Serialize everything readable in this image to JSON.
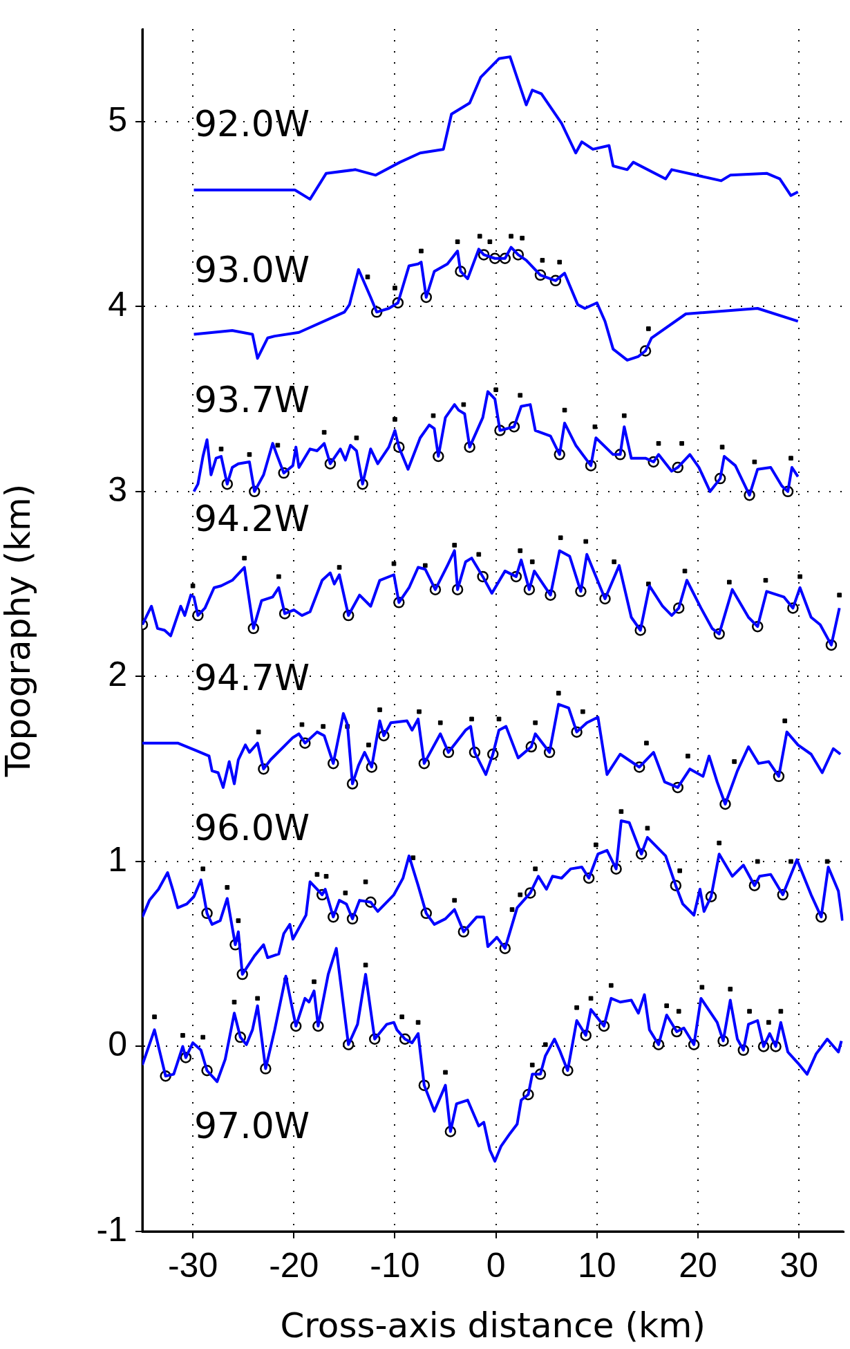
{
  "chart_data": {
    "type": "line",
    "xlabel": "Cross-axis distance (km)",
    "ylabel": "Topography (km)",
    "xlim": [
      -35,
      34.4
    ],
    "ylim": [
      -1,
      5.5
    ],
    "xticks": [
      -30,
      -20,
      -10,
      0,
      10,
      20,
      30
    ],
    "yticks": [
      -1,
      0,
      1,
      2,
      3,
      4,
      5
    ],
    "grid": true,
    "legend": false,
    "annotations": [
      "92.0W",
      "93.0W",
      "93.7W",
      "94.2W",
      "94.7W",
      "96.0W",
      "97.0W"
    ],
    "series": [
      {
        "color": "#0000ff",
        "x": [
          -29.9,
          -19.9,
          -18.4,
          -16.8,
          -13.9,
          -11.9,
          -9.5,
          -7.5,
          -5.2,
          -4.4,
          -2.6,
          -1.5,
          0.3,
          1.4,
          3.0,
          3.6,
          4.5,
          6.5,
          7.9,
          8.5,
          9.6,
          11.2,
          11.6,
          13.0,
          13.6,
          16.8,
          17.4,
          22.3,
          23.2,
          26.8,
          28.1,
          29.2,
          29.9
        ],
        "values": [
          4.63,
          4.63,
          4.58,
          4.72,
          4.74,
          4.71,
          4.78,
          4.83,
          4.85,
          5.04,
          5.1,
          5.24,
          5.34,
          5.35,
          5.09,
          5.17,
          5.15,
          4.99,
          4.83,
          4.89,
          4.85,
          4.87,
          4.76,
          4.74,
          4.78,
          4.69,
          4.74,
          4.68,
          4.71,
          4.72,
          4.69,
          4.6,
          4.62
        ]
      },
      {
        "color": "#0000ff",
        "x": [
          -29.9,
          -26.1,
          -24.1,
          -23.6,
          -22.6,
          -21.9,
          -19.5,
          -15,
          -14.5,
          -13.6,
          -12.4,
          -11.8,
          -10.6,
          -9.7,
          -8.6,
          -7.7,
          -7.4,
          -6.9,
          -6.1,
          -4.8,
          -3.8,
          -3.5,
          -2.8,
          -1.7,
          -1.2,
          -0.1,
          0.9,
          1.5,
          2.2,
          3.0,
          4.4,
          5.9,
          6.8,
          8.1,
          8.8,
          10.0,
          10.8,
          11.6,
          13.0,
          14.1,
          14.8,
          15.4,
          18.8,
          25.9,
          29.9
        ],
        "values": [
          3.85,
          3.87,
          3.85,
          3.72,
          3.83,
          3.84,
          3.86,
          3.97,
          4.01,
          4.2,
          4.05,
          3.97,
          3.99,
          4.02,
          4.22,
          4.23,
          4.24,
          4.05,
          4.19,
          4.23,
          4.3,
          4.19,
          4.15,
          4.31,
          4.28,
          4.26,
          4.26,
          4.32,
          4.28,
          4.25,
          4.17,
          4.14,
          4.18,
          4.01,
          3.99,
          4.02,
          3.92,
          3.77,
          3.71,
          3.73,
          3.76,
          3.83,
          3.96,
          3.99,
          3.92
        ]
      },
      {
        "color": "#0000ff",
        "x": [
          -29.9,
          -29.5,
          -29,
          -28.6,
          -28.2,
          -27.7,
          -27.2,
          -26.6,
          -26.1,
          -25.5,
          -24.4,
          -23.9,
          -23,
          -22.1,
          -21.7,
          -21,
          -20.1,
          -19.8,
          -19.5,
          -18.4,
          -17.7,
          -17,
          -16.4,
          -15.4,
          -14.9,
          -14.4,
          -13.8,
          -13.2,
          -12.4,
          -11.7,
          -10.6,
          -10,
          -9.6,
          -8.7,
          -7.5,
          -6.6,
          -6.1,
          -5.7,
          -5,
          -4.1,
          -3.7,
          -3.1,
          -2.6,
          -1.3,
          -0.8,
          -0.1,
          0.4,
          1.8,
          2.5,
          3.4,
          3.9,
          5.4,
          6.3,
          6.8,
          7.9,
          9.4,
          9.9,
          11.6,
          12.3,
          12.7,
          13.4,
          14.8,
          15.6,
          16.1,
          17.4,
          18.0,
          19.2,
          20.1,
          21.2,
          22.2,
          22.6,
          23.7,
          25.1,
          25.9,
          27.2,
          28.3,
          28.9,
          29.3,
          29.9
        ],
        "values": [
          3.0,
          3.04,
          3.19,
          3.28,
          3.09,
          3.18,
          3.19,
          3.04,
          3.13,
          3.15,
          3.16,
          3.0,
          3.09,
          3.26,
          3.2,
          3.1,
          3.14,
          3.24,
          3.13,
          3.23,
          3.22,
          3.26,
          3.15,
          3.23,
          3.17,
          3.25,
          3.22,
          3.04,
          3.23,
          3.15,
          3.24,
          3.33,
          3.24,
          3.12,
          3.29,
          3.36,
          3.34,
          3.19,
          3.4,
          3.47,
          3.44,
          3.42,
          3.24,
          3.4,
          3.54,
          3.5,
          3.33,
          3.35,
          3.46,
          3.47,
          3.33,
          3.3,
          3.2,
          3.37,
          3.25,
          3.14,
          3.29,
          3.2,
          3.2,
          3.35,
          3.18,
          3.18,
          3.16,
          3.2,
          3.11,
          3.13,
          3.2,
          3.13,
          3.0,
          3.07,
          3.19,
          3.14,
          2.98,
          3.12,
          3.13,
          3.03,
          3.0,
          3.13,
          3.08
        ]
      },
      {
        "color": "#0000ff",
        "x": [
          -35,
          -34.1,
          -33.5,
          -32.8,
          -32.2,
          -31.2,
          -30.8,
          -30.2,
          -29.9,
          -29.5,
          -28.8,
          -27.9,
          -27.2,
          -26.1,
          -24.9,
          -24,
          -23.2,
          -22.1,
          -21.5,
          -20.9,
          -20,
          -19.2,
          -18.4,
          -17.2,
          -16.4,
          -16,
          -15.5,
          -14.6,
          -13.5,
          -12.4,
          -11.5,
          -10.1,
          -9.6,
          -8.6,
          -7.7,
          -7,
          -6,
          -4.8,
          -4.1,
          -3.8,
          -3,
          -2.4,
          -1.3,
          -0.4,
          0.9,
          2.0,
          2.5,
          3.3,
          3.8,
          5.4,
          6.3,
          7.3,
          8.4,
          9.0,
          10.8,
          12.2,
          13.4,
          14.3,
          15.2,
          16.5,
          17.4,
          18.1,
          18.9,
          20.3,
          21.4,
          22.1,
          23.4,
          25.0,
          25.9,
          26.8,
          28.5,
          29.4,
          30.1,
          31.2,
          32.1,
          33.2,
          34.0
        ],
        "values": [
          2.28,
          2.38,
          2.26,
          2.25,
          2.22,
          2.38,
          2.33,
          2.44,
          2.43,
          2.33,
          2.37,
          2.48,
          2.49,
          2.52,
          2.59,
          2.26,
          2.41,
          2.43,
          2.48,
          2.34,
          2.36,
          2.33,
          2.35,
          2.52,
          2.56,
          2.5,
          2.55,
          2.33,
          2.44,
          2.38,
          2.52,
          2.55,
          2.4,
          2.48,
          2.59,
          2.58,
          2.47,
          2.6,
          2.68,
          2.47,
          2.62,
          2.64,
          2.54,
          2.45,
          2.57,
          2.54,
          2.63,
          2.47,
          2.57,
          2.44,
          2.68,
          2.65,
          2.46,
          2.66,
          2.42,
          2.6,
          2.32,
          2.25,
          2.49,
          2.38,
          2.33,
          2.37,
          2.52,
          2.37,
          2.26,
          2.23,
          2.47,
          2.32,
          2.27,
          2.46,
          2.43,
          2.37,
          2.48,
          2.32,
          2.28,
          2.17,
          2.37
        ]
      },
      {
        "color": "#0000ff",
        "x": [
          -35,
          -31.5,
          -29.7,
          -28.4,
          -28.1,
          -27.5,
          -27,
          -26.4,
          -25.9,
          -25.5,
          -24.8,
          -24.4,
          -23.6,
          -23,
          -22.3,
          -20.1,
          -19.5,
          -18.9,
          -17.7,
          -17,
          -16.1,
          -15.1,
          -14.7,
          -14.2,
          -13.6,
          -13,
          -12.3,
          -11.5,
          -11.1,
          -10.4,
          -8.8,
          -8.3,
          -7.7,
          -7.1,
          -5.5,
          -4.7,
          -3,
          -2.5,
          -2.1,
          -1,
          -0.3,
          0.3,
          1.0,
          2.2,
          3.5,
          3.9,
          5.3,
          6.2,
          7.2,
          8.0,
          9.0,
          10.1,
          11.0,
          12.3,
          14.2,
          15.6,
          16.7,
          18.0,
          19.2,
          20.5,
          21.1,
          21.9,
          22.7,
          23.9,
          25.0,
          26.0,
          27.0,
          28.0,
          28.8,
          29.9,
          31.2,
          32.3,
          33.4,
          34.1
        ],
        "values": [
          1.64,
          1.64,
          1.6,
          1.57,
          1.49,
          1.48,
          1.4,
          1.54,
          1.42,
          1.55,
          1.63,
          1.59,
          1.64,
          1.5,
          1.55,
          1.67,
          1.69,
          1.64,
          1.7,
          1.68,
          1.53,
          1.8,
          1.74,
          1.42,
          1.52,
          1.59,
          1.51,
          1.76,
          1.68,
          1.75,
          1.76,
          1.71,
          1.77,
          1.53,
          1.69,
          1.59,
          1.71,
          1.73,
          1.59,
          1.47,
          1.58,
          1.71,
          1.73,
          1.56,
          1.62,
          1.69,
          1.59,
          1.85,
          1.83,
          1.7,
          1.75,
          1.78,
          1.47,
          1.58,
          1.51,
          1.59,
          1.43,
          1.4,
          1.5,
          1.46,
          1.57,
          1.43,
          1.31,
          1.49,
          1.62,
          1.53,
          1.54,
          1.46,
          1.7,
          1.63,
          1.58,
          1.48,
          1.61,
          1.58
        ]
      },
      {
        "color": "#0000ff",
        "x": [
          -35,
          -34.3,
          -33.4,
          -32.5,
          -32,
          -31.5,
          -30.6,
          -29.9,
          -29.2,
          -28.6,
          -28.1,
          -27.3,
          -26.6,
          -25.8,
          -25.5,
          -25.1,
          -23.9,
          -23,
          -22.6,
          -21.5,
          -21,
          -20.4,
          -20.1,
          -18.8,
          -18.4,
          -17.7,
          -17.2,
          -16.9,
          -16.1,
          -15.5,
          -14.8,
          -14.2,
          -13.5,
          -12.4,
          -11.7,
          -10.1,
          -9.2,
          -8.6,
          -7.7,
          -6.9,
          -6.1,
          -5,
          -4.1,
          -3.2,
          -1.9,
          -1.2,
          -0.8,
          0.1,
          0.9,
          2.1,
          3.4,
          4.2,
          5.0,
          5.6,
          6.5,
          7.4,
          8.5,
          9.2,
          10.1,
          11.0,
          11.9,
          12.4,
          13.2,
          13.9,
          14.4,
          15.0,
          16.8,
          17.8,
          18.5,
          19.6,
          20.2,
          20.6,
          21.3,
          22.1,
          23.4,
          24.5,
          25.6,
          26.1,
          27.2,
          28.4,
          29.8,
          31.2,
          32.2,
          32.9,
          33.9,
          34.3
        ],
        "values": [
          0.7,
          0.79,
          0.85,
          0.94,
          0.85,
          0.75,
          0.77,
          0.81,
          0.9,
          0.72,
          0.66,
          0.68,
          0.8,
          0.55,
          0.62,
          0.39,
          0.49,
          0.55,
          0.48,
          0.5,
          0.61,
          0.66,
          0.58,
          0.71,
          0.89,
          0.85,
          0.82,
          0.85,
          0.7,
          0.79,
          0.77,
          0.69,
          0.79,
          0.78,
          0.73,
          0.82,
          0.91,
          1.03,
          0.87,
          0.72,
          0.66,
          0.69,
          0.74,
          0.62,
          0.7,
          0.7,
          0.54,
          0.59,
          0.53,
          0.75,
          0.83,
          0.92,
          0.85,
          0.92,
          0.91,
          0.96,
          0.97,
          0.91,
          1.04,
          1.06,
          0.96,
          1.22,
          1.21,
          1.11,
          1.04,
          1.13,
          1.03,
          0.87,
          0.77,
          0.71,
          0.85,
          0.73,
          0.81,
          1.04,
          0.92,
          0.98,
          0.87,
          0.92,
          0.93,
          0.82,
          1.01,
          0.82,
          0.7,
          0.97,
          0.84,
          0.68
        ]
      },
      {
        "color": "#0000ff",
        "x": [
          -35,
          -33.8,
          -32.7,
          -31.9,
          -31,
          -30.7,
          -30,
          -29.2,
          -28.6,
          -27.6,
          -26.8,
          -25.9,
          -25.3,
          -24.7,
          -24.1,
          -23.6,
          -22.8,
          -21.9,
          -20.8,
          -19.8,
          -18.9,
          -18.5,
          -18,
          -17.6,
          -16.6,
          -15.8,
          -14.6,
          -13.7,
          -12.9,
          -12,
          -10.8,
          -10.1,
          -9.8,
          -9,
          -8.3,
          -7.7,
          -7.1,
          -6.1,
          -5,
          -4.5,
          -3.9,
          -2.8,
          -1.7,
          -1.2,
          -0.6,
          -0.1,
          0.5,
          1.4,
          2.1,
          2.5,
          3.2,
          3.6,
          4.4,
          4.9,
          5.8,
          6.3,
          7.1,
          8.0,
          8.9,
          9.4,
          10.7,
          11.4,
          12.3,
          13.4,
          14.1,
          14.7,
          15.2,
          16.1,
          16.9,
          17.9,
          18.6,
          19.6,
          20.3,
          21.9,
          22.5,
          23.2,
          23.9,
          24.5,
          25.0,
          25.9,
          26.5,
          27.1,
          27.7,
          28.2,
          28.9,
          29.9,
          30.8,
          31.7,
          32.8,
          33.9,
          34.2
        ],
        "values": [
          -0.1,
          0.09,
          -0.16,
          -0.15,
          0.0,
          -0.06,
          0.02,
          -0.02,
          -0.13,
          -0.19,
          -0.07,
          0.18,
          0.05,
          0.01,
          0.09,
          0.22,
          -0.12,
          0.09,
          0.38,
          0.11,
          0.26,
          0.24,
          0.3,
          0.11,
          0.39,
          0.53,
          0.01,
          0.12,
          0.39,
          0.04,
          0.12,
          0.13,
          0.09,
          0.04,
          0.02,
          0.07,
          -0.21,
          -0.35,
          -0.21,
          -0.46,
          -0.31,
          -0.29,
          -0.43,
          -0.41,
          -0.56,
          -0.62,
          -0.54,
          -0.47,
          -0.42,
          -0.29,
          -0.26,
          -0.15,
          -0.15,
          -0.05,
          0.04,
          -0.02,
          -0.13,
          0.14,
          0.06,
          0.2,
          0.11,
          0.26,
          0.24,
          0.25,
          0.18,
          0.28,
          0.09,
          0.01,
          0.17,
          0.08,
          0.1,
          0.01,
          0.26,
          0.13,
          0.03,
          0.25,
          0.04,
          -0.02,
          0.12,
          0.14,
          0.0,
          0.07,
          0.0,
          0.13,
          -0.03,
          -0.09,
          -0.15,
          -0.04,
          0.04,
          -0.03,
          0.03
        ]
      },
      {
        "type": "scatter",
        "marker": "circle",
        "color": "#ffffff",
        "x": [
          -11.8,
          -9.7,
          -6.9,
          -3.5,
          -1.2,
          -0.1,
          0.9,
          2.2,
          4.4,
          5.9,
          14.8,
          -26.6,
          -23.9,
          -21,
          -16.4,
          -13.2,
          -9.6,
          -5.7,
          -2.6,
          0.4,
          1.8,
          6.3,
          9.4,
          12.3,
          15.6,
          18.0,
          22.2,
          25.1,
          28.9,
          -35,
          -29.5,
          -24,
          -20.9,
          -14.6,
          -9.6,
          -6,
          -3.8,
          -1.3,
          2.0,
          3.3,
          5.4,
          8.4,
          10.8,
          14.3,
          18.1,
          22.1,
          25.9,
          29.4,
          33.2,
          -23,
          -18.9,
          -16.1,
          -14.2,
          -12.3,
          -11.1,
          -7.1,
          -4.7,
          -2.1,
          -0.3,
          3.5,
          5.3,
          8.0,
          14.2,
          18.0,
          22.7,
          28.0,
          -28.6,
          -25.8,
          -25.1,
          -17.2,
          -16.1,
          -14.2,
          -12.4,
          -6.9,
          -3.2,
          0.9,
          3.4,
          9.2,
          11.9,
          14.4,
          17.8,
          21.3,
          25.6,
          28.4,
          32.2,
          -32.7,
          -30.7,
          -28.6,
          -25.3,
          -22.8,
          -19.8,
          -17.6,
          -14.6,
          -12,
          -9,
          -7.1,
          -4.5,
          3.2,
          4.4,
          7.1,
          8.9,
          10.7,
          16.1,
          17.9,
          19.6,
          22.5,
          24.5,
          26.5,
          27.7
        ],
        "values": [
          3.97,
          4.02,
          4.05,
          4.19,
          4.28,
          4.26,
          4.26,
          4.28,
          4.17,
          4.14,
          3.76,
          3.04,
          3.0,
          3.1,
          3.15,
          3.04,
          3.24,
          3.19,
          3.24,
          3.33,
          3.35,
          3.2,
          3.14,
          3.2,
          3.16,
          3.13,
          3.07,
          2.98,
          3.0,
          2.28,
          2.33,
          2.26,
          2.34,
          2.33,
          2.4,
          2.47,
          2.47,
          2.54,
          2.54,
          2.47,
          2.44,
          2.46,
          2.42,
          2.25,
          2.37,
          2.23,
          2.27,
          2.37,
          2.17,
          1.5,
          1.64,
          1.53,
          1.42,
          1.51,
          1.68,
          1.53,
          1.59,
          1.59,
          1.58,
          1.62,
          1.59,
          1.7,
          1.51,
          1.4,
          1.31,
          1.46,
          0.72,
          0.55,
          0.39,
          0.82,
          0.7,
          0.69,
          0.78,
          0.72,
          0.62,
          0.53,
          0.83,
          0.91,
          0.96,
          1.04,
          0.87,
          0.81,
          0.87,
          0.82,
          0.7,
          -0.16,
          -0.06,
          -0.13,
          0.05,
          -0.12,
          0.11,
          0.11,
          0.01,
          0.04,
          0.04,
          -0.21,
          -0.46,
          -0.26,
          -0.15,
          -0.13,
          0.06,
          0.11,
          0.01,
          0.08,
          0.01,
          0.03,
          -0.02,
          0.0,
          0.0
        ]
      },
      {
        "type": "scatter",
        "marker": "square",
        "color": "#000000",
        "x": [
          -12.7,
          -10,
          -7.4,
          -3.8,
          -1.6,
          -0.6,
          1.5,
          2.6,
          4.6,
          6.3,
          15.1,
          -27.2,
          -24.4,
          -21.6,
          -17,
          -13.8,
          -10,
          -6.2,
          -3.2,
          0,
          2.4,
          6.8,
          9.8,
          12.7,
          16.1,
          18.4,
          22.4,
          25.6,
          29.2,
          -30,
          -24.9,
          -21.5,
          -15.5,
          -10.1,
          -7,
          -4.1,
          -1.7,
          2.4,
          3.6,
          6.4,
          8.9,
          11.7,
          15.1,
          18.7,
          23.1,
          26.7,
          30.1,
          34.0,
          -23.5,
          -19.2,
          -17.1,
          -14.7,
          -12.6,
          -11.5,
          -7.6,
          -5.5,
          -2.4,
          0.3,
          3.9,
          6.2,
          8.6,
          14.9,
          19.0,
          23.6,
          28.6,
          -29,
          -26.6,
          -25.5,
          -17.7,
          -16.8,
          -14.9,
          -12.9,
          -8.2,
          -4.1,
          1.6,
          2.4,
          3.9,
          9.9,
          12.4,
          15.0,
          18.2,
          22.1,
          25.9,
          29.2,
          32.8,
          -33.8,
          -31,
          -29,
          -25.9,
          -23.6,
          -20.8,
          -18,
          -12.9,
          -9.3,
          -7.7,
          -5,
          3.6,
          4.9,
          8.0,
          9.4,
          11.4,
          16.9,
          18.1,
          20.4,
          23.2,
          25.1,
          27.0,
          28.2
        ],
        "values": [
          4.16,
          4.1,
          4.3,
          4.35,
          4.38,
          4.35,
          4.38,
          4.37,
          4.25,
          4.24,
          3.88,
          3.23,
          3.2,
          3.25,
          3.32,
          3.29,
          3.39,
          3.41,
          3.47,
          3.55,
          3.52,
          3.44,
          3.35,
          3.41,
          3.26,
          3.26,
          3.24,
          3.16,
          3.18,
          2.49,
          2.64,
          2.54,
          2.59,
          2.61,
          2.6,
          2.71,
          2.66,
          2.68,
          2.62,
          2.75,
          2.73,
          2.62,
          2.5,
          2.57,
          2.51,
          2.52,
          2.54,
          2.44,
          1.7,
          1.74,
          1.73,
          1.73,
          1.63,
          1.82,
          1.81,
          1.75,
          1.77,
          1.77,
          1.75,
          1.91,
          1.81,
          1.64,
          1.57,
          1.54,
          1.76,
          0.96,
          0.86,
          0.68,
          0.93,
          0.92,
          0.83,
          0.89,
          1.02,
          0.79,
          0.74,
          0.82,
          0.96,
          1.09,
          1.27,
          1.18,
          0.95,
          1.1,
          1.0,
          1.0,
          1.0,
          0.16,
          0.06,
          0.05,
          0.24,
          0.26,
          0.36,
          0.35,
          0.44,
          0.16,
          0.13,
          -0.14,
          -0.1,
          0.01,
          0.21,
          0.26,
          0.33,
          0.22,
          0.19,
          0.32,
          0.31,
          0.19,
          0.13,
          0.19
        ]
      }
    ]
  }
}
